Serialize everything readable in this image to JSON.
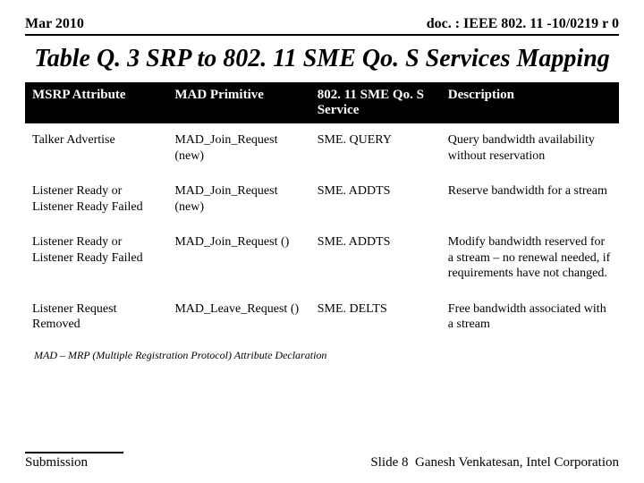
{
  "header": {
    "left": "Mar 2010",
    "right": "doc. : IEEE 802. 11 -10/0219 r 0"
  },
  "title": "Table Q. 3 SRP to 802. 11 SME Qo. S Services Mapping",
  "table": {
    "columns": [
      "MSRP Attribute",
      "MAD Primitive",
      "802. 11 SME Qo. S Service",
      "Description"
    ],
    "rows": [
      [
        "Talker Advertise",
        "MAD_Join_Request (new)",
        "SME. QUERY",
        "Query bandwidth availability without reservation"
      ],
      [
        "Listener Ready or Listener Ready Failed",
        "MAD_Join_Request (new)",
        "SME. ADDTS",
        "Reserve bandwidth for a stream"
      ],
      [
        "Listener Ready or Listener Ready Failed",
        "MAD_Join_Request ()",
        "SME. ADDTS",
        "Modify bandwidth reserved for a stream – no renewal needed, if requirements have not changed."
      ],
      [
        "Listener Request Removed",
        "MAD_Leave_Request ()",
        "SME. DELTS",
        "Free bandwidth associated with a stream"
      ]
    ]
  },
  "footnote": "MAD – MRP (Multiple Registration Protocol) Attribute Declaration",
  "footer": {
    "submission": "Submission",
    "slide": "Slide 8",
    "author": "Ganesh Venkatesan, Intel Corporation"
  }
}
